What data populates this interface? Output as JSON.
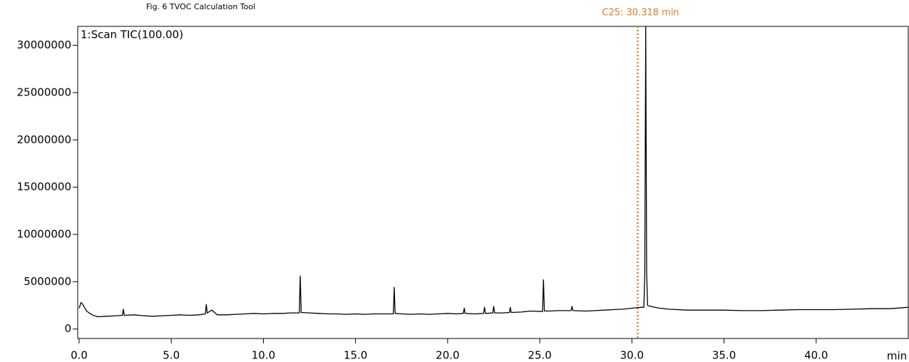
{
  "chart_data": {
    "type": "line",
    "title": "Fig. 6 TVOC Calculation Tool",
    "x_label": "min",
    "x": [
      0,
      0.1,
      0.2,
      0.4,
      0.7,
      1.0,
      1.5,
      2.0,
      2.35,
      2.4,
      2.45,
      3.0,
      3.5,
      4.0,
      4.5,
      5.0,
      5.5,
      6.0,
      6.5,
      6.85,
      6.9,
      6.95,
      7.2,
      7.5,
      8.0,
      8.5,
      9.0,
      9.5,
      10.0,
      10.5,
      11.0,
      11.5,
      11.95,
      12.0,
      12.05,
      12.5,
      13.0,
      13.5,
      14.0,
      14.5,
      15.0,
      15.5,
      16.0,
      16.5,
      17.05,
      17.1,
      17.15,
      17.5,
      18.0,
      18.5,
      19.0,
      19.5,
      20.0,
      20.5,
      20.85,
      20.9,
      20.95,
      21.5,
      21.95,
      22.0,
      22.05,
      22.45,
      22.5,
      22.55,
      23.0,
      23.35,
      23.4,
      23.45,
      24.0,
      24.5,
      25.15,
      25.2,
      25.25,
      25.5,
      26.0,
      26.7,
      26.75,
      26.8,
      27.5,
      28.0,
      28.5,
      29.0,
      29.5,
      30.0,
      30.5,
      30.65,
      30.7,
      30.75,
      30.8,
      30.85,
      31.0,
      31.5,
      32.0,
      33.0,
      34.0,
      35.0,
      36.0,
      37.0,
      38.0,
      39.0,
      40.0,
      41.0,
      42.0,
      43.0,
      44.0,
      45.0
    ],
    "series": [
      {
        "name": "1:Scan TIC(100.00)",
        "color": "#000000",
        "values": [
          2200000,
          2800000,
          2600000,
          1900000,
          1500000,
          1300000,
          1350000,
          1400000,
          1450000,
          2100000,
          1450000,
          1500000,
          1400000,
          1350000,
          1400000,
          1450000,
          1500000,
          1450000,
          1500000,
          1600000,
          2600000,
          1700000,
          2000000,
          1500000,
          1500000,
          1550000,
          1600000,
          1650000,
          1600000,
          1650000,
          1650000,
          1700000,
          1700000,
          5600000,
          1750000,
          1700000,
          1650000,
          1600000,
          1600000,
          1550000,
          1600000,
          1550000,
          1600000,
          1600000,
          1600000,
          4400000,
          1650000,
          1600000,
          1550000,
          1600000,
          1550000,
          1600000,
          1650000,
          1600000,
          1650000,
          2200000,
          1650000,
          1600000,
          1650000,
          2300000,
          1650000,
          1700000,
          2400000,
          1700000,
          1700000,
          1750000,
          2300000,
          1750000,
          1800000,
          1900000,
          1850000,
          5200000,
          1900000,
          1900000,
          1950000,
          1950000,
          2400000,
          1950000,
          1900000,
          1950000,
          2000000,
          2050000,
          2100000,
          2200000,
          2300000,
          2300000,
          6000000,
          32000000,
          6000000,
          2500000,
          2400000,
          2200000,
          2100000,
          2000000,
          2000000,
          2000000,
          1950000,
          1950000,
          2000000,
          2050000,
          2050000,
          2050000,
          2100000,
          2150000,
          2150000,
          2300000
        ]
      }
    ],
    "xlim": [
      0,
      45
    ],
    "ylim": [
      -1000000,
      32000000
    ],
    "xticks": [
      {
        "value": 0,
        "label": "0.0"
      },
      {
        "value": 5,
        "label": "5.0"
      },
      {
        "value": 10,
        "label": "10.0"
      },
      {
        "value": 15,
        "label": "15.0"
      },
      {
        "value": 20,
        "label": "20.0"
      },
      {
        "value": 25,
        "label": "25.0"
      },
      {
        "value": 30,
        "label": "30.0"
      },
      {
        "value": 35,
        "label": "35.0"
      },
      {
        "value": 40,
        "label": "40.0"
      }
    ],
    "yticks": [
      0,
      5000000,
      10000000,
      15000000,
      20000000,
      25000000,
      30000000
    ],
    "annotations": [
      {
        "x": 30.318,
        "label": "C25: 30.318 min",
        "color": "#e07b28"
      }
    ]
  }
}
